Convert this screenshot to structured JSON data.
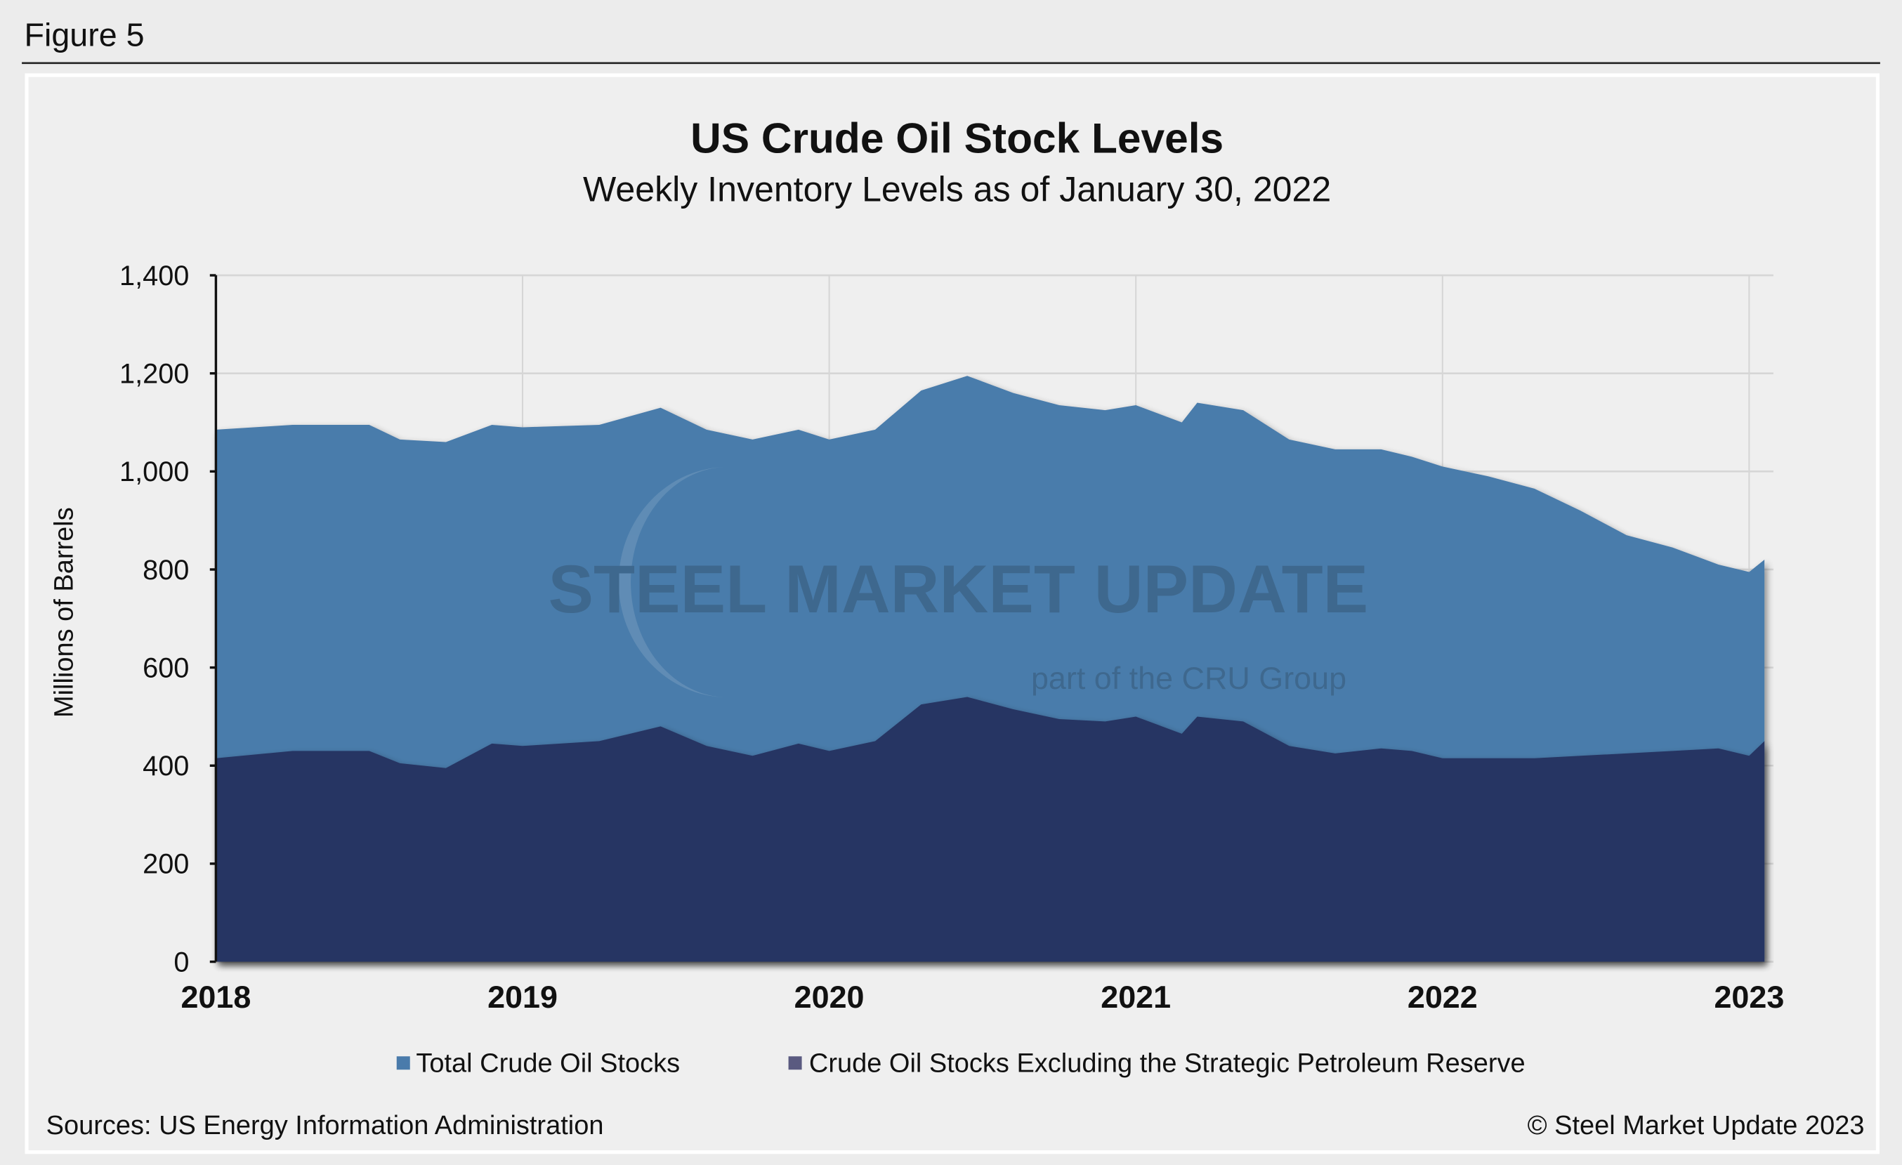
{
  "figure_label": "Figure 5",
  "sources": "Sources: US Energy Information Administration",
  "copyright": "© Steel Market Update 2023",
  "watermark": {
    "line1": "STEEL MARKET UPDATE",
    "line2": "part of the CRU Group"
  },
  "colors": {
    "total": "#4a7bab",
    "commercial": "#283563",
    "background": "#ececec"
  },
  "chart_data": {
    "type": "area",
    "title": "US Crude Oil Stock Levels",
    "subtitle": "Weekly Inventory Levels as of January 30, 2022",
    "ylabel": "Millions of Barrels",
    "xlabel": "",
    "ylim": [
      0,
      1400
    ],
    "xlim": [
      2018,
      2023.08
    ],
    "yticks": [
      "0",
      "200",
      "400",
      "600",
      "800",
      "1,000",
      "1,200",
      "1,400"
    ],
    "ytick_values": [
      0,
      200,
      400,
      600,
      800,
      1000,
      1200,
      1400
    ],
    "xticks": [
      "2018",
      "2019",
      "2020",
      "2021",
      "2022",
      "2023"
    ],
    "xtick_values": [
      2018,
      2019,
      2020,
      2021,
      2022,
      2023
    ],
    "grid": true,
    "legend": "bottom",
    "x": [
      2018.0,
      2018.25,
      2018.5,
      2018.6,
      2018.75,
      2018.9,
      2019.0,
      2019.25,
      2019.45,
      2019.6,
      2019.75,
      2019.9,
      2020.0,
      2020.15,
      2020.3,
      2020.45,
      2020.6,
      2020.75,
      2020.9,
      2021.0,
      2021.15,
      2021.2,
      2021.35,
      2021.5,
      2021.65,
      2021.8,
      2021.9,
      2022.0,
      2022.15,
      2022.3,
      2022.45,
      2022.6,
      2022.75,
      2022.9,
      2023.0,
      2023.05
    ],
    "series": [
      {
        "name": "Total Crude Oil Stocks",
        "values": [
          1085,
          1095,
          1095,
          1065,
          1060,
          1095,
          1090,
          1095,
          1130,
          1085,
          1065,
          1085,
          1065,
          1085,
          1165,
          1195,
          1160,
          1135,
          1125,
          1135,
          1100,
          1140,
          1125,
          1065,
          1045,
          1045,
          1030,
          1010,
          990,
          965,
          920,
          870,
          845,
          810,
          795,
          820
        ]
      },
      {
        "name": "Crude Oil Stocks Excluding the Strategic Petroleum Reserve",
        "values": [
          415,
          430,
          430,
          405,
          395,
          445,
          440,
          450,
          480,
          440,
          420,
          445,
          430,
          450,
          525,
          540,
          515,
          495,
          490,
          500,
          465,
          500,
          490,
          440,
          425,
          435,
          430,
          415,
          415,
          415,
          420,
          425,
          430,
          435,
          420,
          450
        ]
      }
    ]
  }
}
